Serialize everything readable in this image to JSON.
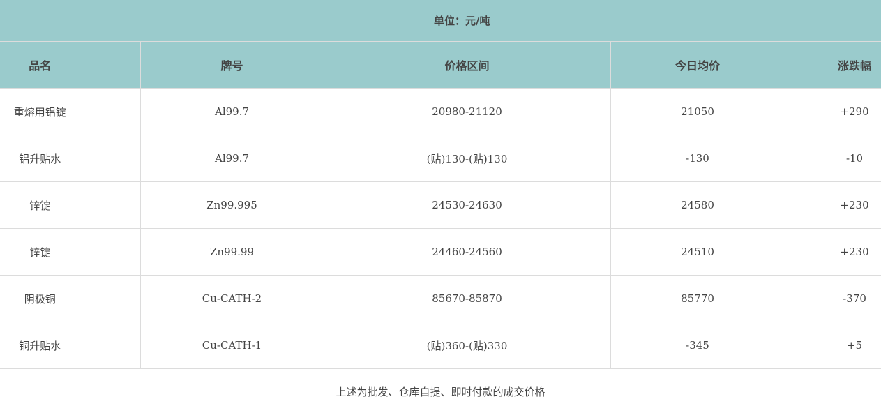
{
  "unit": "单位：元/吨",
  "headers": [
    "品名",
    "牌号",
    "价格区间",
    "今日均价",
    "涨跌幅"
  ],
  "rows": [
    [
      "重熔用铝锭",
      "Al99.7",
      "20980-21120",
      "21050",
      "+290"
    ],
    [
      "铝升贴水",
      "Al99.7",
      "(贴)130-(贴)130",
      "-130",
      "-10"
    ],
    [
      "锌锭",
      "Zn99.995",
      "24530-24630",
      "24580",
      "+230"
    ],
    [
      "锌锭",
      "Zn99.99",
      "24460-24560",
      "24510",
      "+230"
    ],
    [
      "阴极铜",
      "Cu-CATH-2",
      "85670-85870",
      "85770",
      "-370"
    ],
    [
      "铜升贴水",
      "Cu-CATH-1",
      "(贴)360-(贴)330",
      "-345",
      "+5"
    ]
  ],
  "footer": "上述为批发、仓库自提、即时付款的成交价格",
  "colors": {
    "header_bg": "#9acbcc"
  }
}
